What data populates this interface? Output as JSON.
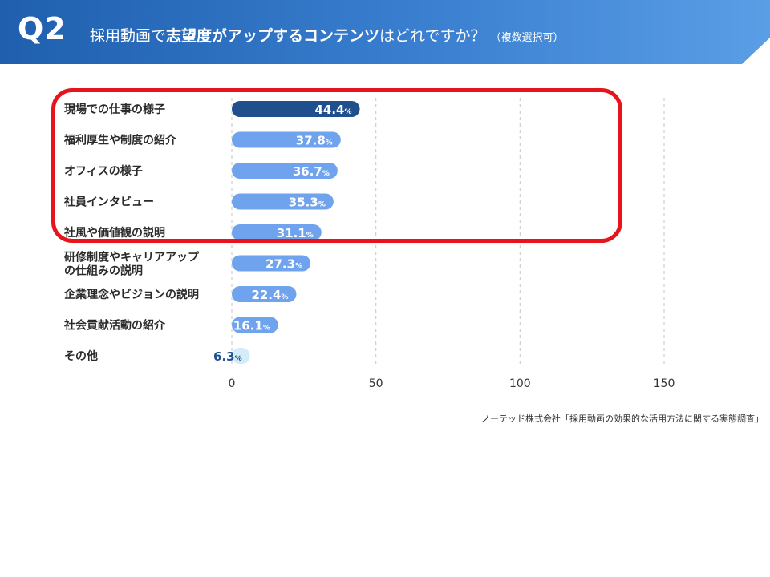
{
  "header": {
    "q_label": "Q2",
    "title_pre": "採用動画で",
    "title_em": "志望度がアップするコンテンツ",
    "title_post": "はどれですか？",
    "title_note": "（複数選択可）"
  },
  "source": "ノーテッド株式会社「採用動画の効果的な活用方法に関する実態調査」",
  "colors": {
    "top": "#1f4f8c",
    "main": "#6fa3ee",
    "light": "#d2ecf9",
    "highlight_border": "#e8141b",
    "grid": "#cfcfcf"
  },
  "chart_data": {
    "type": "bar",
    "orientation": "horizontal",
    "categories": [
      "現場での仕事の様子",
      "福利厚生や制度の紹介",
      "オフィスの様子",
      "社員インタビュー",
      "社風や価値観の説明",
      "研修制度やキャリアアップの仕組みの説明",
      "企業理念やビジョンの説明",
      "社会貢献活動の紹介",
      "その他"
    ],
    "values": [
      44.4,
      37.8,
      36.7,
      35.3,
      31.1,
      27.3,
      22.4,
      16.1,
      6.3
    ],
    "value_labels": [
      "44.4",
      "37.8",
      "36.7",
      "35.3",
      "31.1",
      "27.3",
      "22.4",
      "16.1",
      "6.3"
    ],
    "unit": "%",
    "xlim": [
      0,
      150
    ],
    "xticks": [
      0,
      50,
      100,
      150
    ],
    "grid": true
  }
}
